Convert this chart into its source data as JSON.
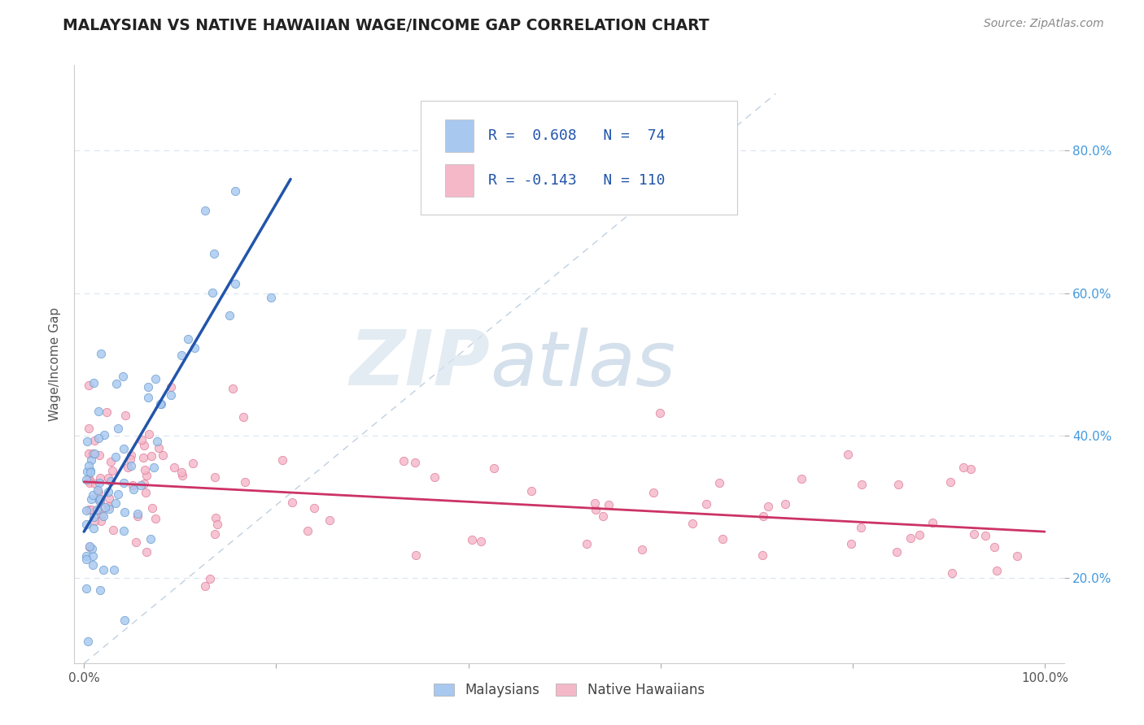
{
  "title": "MALAYSIAN VS NATIVE HAWAIIAN WAGE/INCOME GAP CORRELATION CHART",
  "source": "Source: ZipAtlas.com",
  "ylabel": "Wage/Income Gap",
  "legend_labels": [
    "Malaysians",
    "Native Hawaiians"
  ],
  "R_blue": 0.608,
  "N_blue": 74,
  "R_pink": -0.143,
  "N_pink": 110,
  "color_blue": "#a8c8f0",
  "color_blue_edge": "#6699cc",
  "color_blue_line": "#2255aa",
  "color_pink": "#f5b8c8",
  "color_pink_edge": "#dd7799",
  "color_pink_line": "#cc3366",
  "watermark_zip": "#c8d8e8",
  "watermark_atlas": "#b8cce0",
  "background_color": "#ffffff",
  "xlim": [
    0.0,
    1.0
  ],
  "ylim": [
    0.08,
    0.92
  ],
  "yticks": [
    0.2,
    0.4,
    0.6,
    0.8
  ],
  "ytick_labels": [
    "20.0%",
    "40.0%",
    "60.0%",
    "80.0%"
  ],
  "blue_line_x": [
    0.0,
    0.215
  ],
  "blue_line_y": [
    0.265,
    0.76
  ],
  "pink_line_x": [
    0.0,
    1.0
  ],
  "pink_line_y": [
    0.335,
    0.265
  ],
  "diag_line_x": [
    0.0,
    0.72
  ],
  "diag_line_y": [
    0.08,
    0.88
  ]
}
